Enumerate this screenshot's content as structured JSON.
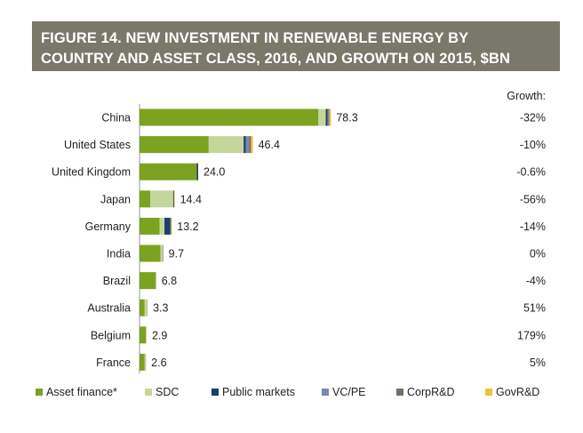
{
  "title_lines": [
    "FIGURE 14. NEW INVESTMENT IN RENEWABLE ENERGY BY",
    "COUNTRY AND ASSET CLASS, 2016, AND GROWTH ON 2015, $BN"
  ],
  "growth_header": "Growth:",
  "colors": {
    "title_bg": "#7a776b",
    "Asset finance*": "#7ba31f",
    "SDC": "#c5d69a",
    "Public markets": "#1f3d6b",
    "VC/PE": "#7a86b5",
    "CorpR&D": "#707063",
    "GovR&D": "#f0c13a"
  },
  "chart_data": {
    "type": "bar",
    "orientation": "horizontal",
    "stacked": true,
    "categories": [
      "China",
      "United States",
      "United Kingdom",
      "Japan",
      "Germany",
      "India",
      "Brazil",
      "Australia",
      "Belgium",
      "France"
    ],
    "totals": [
      "78.3",
      "46.4",
      "24.0",
      "14.4",
      "13.2",
      "9.7",
      "6.8",
      "3.3",
      "2.9",
      "2.6"
    ],
    "growth": [
      "-32%",
      "-10%",
      "-0.6%",
      "-56%",
      "-14%",
      "0%",
      "-4%",
      "51%",
      "179%",
      "5%"
    ],
    "series": [
      {
        "name": "Asset finance*",
        "values": [
          73.2,
          28.3,
          23.4,
          4.4,
          8.2,
          8.6,
          6.6,
          2.1,
          2.6,
          2.1
        ]
      },
      {
        "name": "SDC",
        "values": [
          3.0,
          14.3,
          0.0,
          9.4,
          2.0,
          0.9,
          0.1,
          1.1,
          0.3,
          0.4
        ]
      },
      {
        "name": "Public markets",
        "values": [
          0.8,
          0.9,
          0.6,
          0.2,
          2.4,
          0.1,
          0.0,
          0.0,
          0.0,
          0.0
        ]
      },
      {
        "name": "VC/PE",
        "values": [
          0.2,
          1.3,
          0.0,
          0.0,
          0.1,
          0.0,
          0.0,
          0.0,
          0.0,
          0.0
        ]
      },
      {
        "name": "CorpR&D",
        "values": [
          0.5,
          0.8,
          0.0,
          0.2,
          0.3,
          0.1,
          0.1,
          0.1,
          0.0,
          0.1
        ]
      },
      {
        "name": "GovR&D",
        "values": [
          0.6,
          0.8,
          0.0,
          0.2,
          0.2,
          0.0,
          0.0,
          0.0,
          0.0,
          0.0
        ]
      }
    ],
    "xlim": [
      0,
      80
    ],
    "grid": false,
    "legend": "bottom"
  }
}
